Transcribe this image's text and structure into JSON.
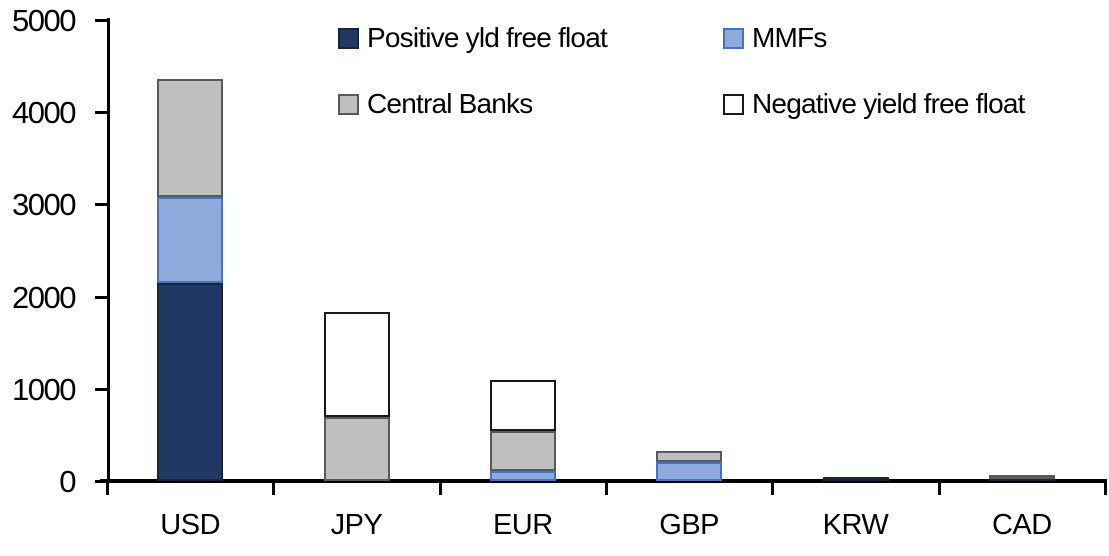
{
  "chart_data": {
    "type": "bar",
    "subtype": "stacked",
    "title": "",
    "xlabel": "",
    "ylabel": "",
    "categories": [
      "USD",
      "JPY",
      "EUR",
      "GBP",
      "KRW",
      "CAD"
    ],
    "series": [
      {
        "name": "Positive yld free float",
        "color": "#1F3864",
        "border": "#17263F",
        "values": [
          2150,
          0,
          0,
          0,
          40,
          40
        ]
      },
      {
        "name": "MMFs",
        "color": "#8EAADB",
        "border": "#4472C4",
        "values": [
          930,
          0,
          110,
          210,
          0,
          0
        ]
      },
      {
        "name": "Central Banks",
        "color": "#BFBFBF",
        "border": "#595959",
        "values": [
          1280,
          690,
          430,
          120,
          0,
          25
        ]
      },
      {
        "name": "Negative yield free float",
        "color": "#FFFFFF",
        "border": "#1A1A1A",
        "values": [
          0,
          1140,
          560,
          0,
          0,
          0
        ]
      }
    ],
    "ylim": [
      0,
      5000
    ],
    "yticks": [
      0,
      1000,
      2000,
      3000,
      4000,
      5000
    ],
    "grid": false,
    "legend_position": "top",
    "axis_color": "#000000",
    "text_color": "#000000"
  }
}
